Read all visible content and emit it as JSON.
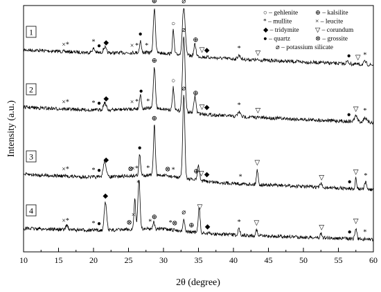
{
  "chart_data": {
    "type": "line",
    "title": "",
    "xlabel": "2θ (degree)",
    "ylabel": "Intensity (a.u.)",
    "xlim": [
      10,
      60
    ],
    "x_ticks": [
      "10",
      "15",
      "20",
      "25",
      "30",
      "35",
      "40",
      "45",
      "50",
      "55",
      "60"
    ],
    "grid": false,
    "legend_position": "top-right",
    "legend": [
      {
        "symbol": "○",
        "text": "– gehlenite"
      },
      {
        "symbol": "⊕",
        "text": "– kalsilite"
      },
      {
        "symbol": "*",
        "text": "– mullite"
      },
      {
        "symbol": "×",
        "text": "– leucite"
      },
      {
        "symbol": "◆",
        "text": "– tridymite"
      },
      {
        "symbol": "▽",
        "text": "– corundum"
      },
      {
        "symbol": "●",
        "text": "– quartz"
      },
      {
        "symbol": "⊗",
        "text": "– grossite"
      },
      {
        "symbol": "⌀",
        "text": "– potassium silicate"
      }
    ],
    "series": [
      {
        "name": "1",
        "peaks": [
          {
            "x": 28.7,
            "h": 0.95,
            "w": 0.15
          },
          {
            "x": 32.9,
            "h": 1.0,
            "w": 0.2
          },
          {
            "x": 31.4,
            "h": 0.5,
            "w": 0.12
          },
          {
            "x": 34.5,
            "h": 0.25,
            "w": 0.15
          },
          {
            "x": 26.7,
            "h": 0.25,
            "w": 0.12
          },
          {
            "x": 21.6,
            "h": 0.12,
            "w": 0.2
          },
          {
            "x": 20.0,
            "h": 0.08,
            "w": 0.2
          },
          {
            "x": 40.8,
            "h": 0.08,
            "w": 0.2
          },
          {
            "x": 56.3,
            "h": 0.05,
            "w": 0.2
          },
          {
            "x": 58.8,
            "h": 0.06,
            "w": 0.2
          }
        ],
        "markers": [
          {
            "x": 16.0,
            "s": "×*"
          },
          {
            "x": 20.0,
            "s": "*"
          },
          {
            "x": 20.8,
            "s": "●"
          },
          {
            "x": 21.8,
            "s": "◆"
          },
          {
            "x": 25.5,
            "s": "×"
          },
          {
            "x": 26.2,
            "s": "*"
          },
          {
            "x": 26.7,
            "s": "●"
          },
          {
            "x": 27.6,
            "s": "*"
          },
          {
            "x": 28.7,
            "s": "⊕"
          },
          {
            "x": 31.4,
            "s": "○"
          },
          {
            "x": 32.9,
            "s": "⌀"
          },
          {
            "x": 34.6,
            "s": "⊕"
          },
          {
            "x": 35.5,
            "s": "▽"
          },
          {
            "x": 36.2,
            "s": "◆"
          },
          {
            "x": 40.8,
            "s": "*"
          },
          {
            "x": 43.5,
            "s": "▽"
          },
          {
            "x": 56.5,
            "s": "●"
          },
          {
            "x": 57.8,
            "s": "▽"
          },
          {
            "x": 58.8,
            "s": "*"
          }
        ]
      },
      {
        "name": "2",
        "peaks": [
          {
            "x": 28.7,
            "h": 0.55,
            "w": 0.15
          },
          {
            "x": 32.9,
            "h": 1.0,
            "w": 0.18
          },
          {
            "x": 31.4,
            "h": 0.3,
            "w": 0.12
          },
          {
            "x": 34.5,
            "h": 0.22,
            "w": 0.15
          },
          {
            "x": 26.7,
            "h": 0.2,
            "w": 0.12
          },
          {
            "x": 21.6,
            "h": 0.1,
            "w": 0.2
          },
          {
            "x": 40.8,
            "h": 0.06,
            "w": 0.2
          },
          {
            "x": 57.5,
            "h": 0.08,
            "w": 0.2
          },
          {
            "x": 58.8,
            "h": 0.06,
            "w": 0.2
          }
        ],
        "markers": [
          {
            "x": 16.0,
            "s": "×*"
          },
          {
            "x": 20.0,
            "s": "*"
          },
          {
            "x": 20.8,
            "s": "●"
          },
          {
            "x": 21.8,
            "s": "◆"
          },
          {
            "x": 25.5,
            "s": "×"
          },
          {
            "x": 26.2,
            "s": "*"
          },
          {
            "x": 26.8,
            "s": "●"
          },
          {
            "x": 27.8,
            "s": "*"
          },
          {
            "x": 28.7,
            "s": "⊕"
          },
          {
            "x": 31.4,
            "s": "○"
          },
          {
            "x": 32.9,
            "s": "⌀"
          },
          {
            "x": 34.6,
            "s": "⊕"
          },
          {
            "x": 35.5,
            "s": "▽"
          },
          {
            "x": 36.2,
            "s": "◆"
          },
          {
            "x": 40.8,
            "s": "*"
          },
          {
            "x": 43.5,
            "s": "▽"
          },
          {
            "x": 56.5,
            "s": "●"
          },
          {
            "x": 57.5,
            "s": "▽"
          },
          {
            "x": 58.8,
            "s": "*"
          }
        ]
      },
      {
        "name": "3",
        "peaks": [
          {
            "x": 28.7,
            "h": 0.6,
            "w": 0.13
          },
          {
            "x": 32.9,
            "h": 1.0,
            "w": 0.15
          },
          {
            "x": 26.6,
            "h": 0.25,
            "w": 0.12
          },
          {
            "x": 35.0,
            "h": 0.18,
            "w": 0.15
          },
          {
            "x": 21.6,
            "h": 0.2,
            "w": 0.2
          },
          {
            "x": 43.4,
            "h": 0.18,
            "w": 0.12
          },
          {
            "x": 57.5,
            "h": 0.12,
            "w": 0.12
          },
          {
            "x": 52.5,
            "h": 0.05,
            "w": 0.12
          },
          {
            "x": 58.9,
            "h": 0.08,
            "w": 0.15
          }
        ],
        "markers": [
          {
            "x": 16.0,
            "s": "×*"
          },
          {
            "x": 20.0,
            "s": "*"
          },
          {
            "x": 20.8,
            "s": "●"
          },
          {
            "x": 21.8,
            "s": "◆"
          },
          {
            "x": 25.3,
            "s": "⊗"
          },
          {
            "x": 25.9,
            "s": "×*"
          },
          {
            "x": 26.6,
            "s": "●"
          },
          {
            "x": 27.8,
            "s": "*"
          },
          {
            "x": 28.7,
            "s": "⊕"
          },
          {
            "x": 30.6,
            "s": "⊗"
          },
          {
            "x": 31.4,
            "s": "*"
          },
          {
            "x": 32.9,
            "s": "⌀"
          },
          {
            "x": 34.7,
            "s": "⊕"
          },
          {
            "x": 35.4,
            "s": "▽"
          },
          {
            "x": 36.2,
            "s": "◆"
          },
          {
            "x": 41.0,
            "s": "*"
          },
          {
            "x": 43.4,
            "s": "▽"
          },
          {
            "x": 52.6,
            "s": "▽"
          },
          {
            "x": 56.6,
            "s": "●"
          },
          {
            "x": 57.5,
            "s": "▽"
          },
          {
            "x": 58.9,
            "s": "*"
          }
        ]
      },
      {
        "name": "4",
        "peaks": [
          {
            "x": 21.7,
            "h": 0.45,
            "w": 0.18
          },
          {
            "x": 26.5,
            "h": 0.8,
            "w": 0.15
          },
          {
            "x": 25.9,
            "h": 0.5,
            "w": 0.12
          },
          {
            "x": 28.6,
            "h": 0.12,
            "w": 0.12
          },
          {
            "x": 32.9,
            "h": 0.2,
            "w": 0.12
          },
          {
            "x": 35.1,
            "h": 0.42,
            "w": 0.13
          },
          {
            "x": 40.8,
            "h": 0.1,
            "w": 0.15
          },
          {
            "x": 43.3,
            "h": 0.1,
            "w": 0.12
          },
          {
            "x": 52.5,
            "h": 0.08,
            "w": 0.12
          },
          {
            "x": 57.5,
            "h": 0.18,
            "w": 0.13
          },
          {
            "x": 16.2,
            "h": 0.08,
            "w": 0.15
          }
        ],
        "markers": [
          {
            "x": 16.0,
            "s": "×*"
          },
          {
            "x": 20.0,
            "s": "*"
          },
          {
            "x": 20.8,
            "s": "●"
          },
          {
            "x": 21.7,
            "s": "◆"
          },
          {
            "x": 25.1,
            "s": "⊗"
          },
          {
            "x": 25.7,
            "s": "×"
          },
          {
            "x": 26.4,
            "s": "*"
          },
          {
            "x": 28.1,
            "s": "*"
          },
          {
            "x": 28.7,
            "s": "⊕"
          },
          {
            "x": 31.0,
            "s": "*"
          },
          {
            "x": 31.6,
            "s": "⊗"
          },
          {
            "x": 32.9,
            "s": "⌀"
          },
          {
            "x": 34.0,
            "s": "⊕"
          },
          {
            "x": 35.2,
            "s": "▽"
          },
          {
            "x": 36.3,
            "s": "◆"
          },
          {
            "x": 40.8,
            "s": "*"
          },
          {
            "x": 43.3,
            "s": "▽"
          },
          {
            "x": 52.6,
            "s": "▽"
          },
          {
            "x": 56.6,
            "s": "●"
          },
          {
            "x": 57.5,
            "s": "▽"
          },
          {
            "x": 58.8,
            "s": "*"
          }
        ]
      }
    ]
  }
}
